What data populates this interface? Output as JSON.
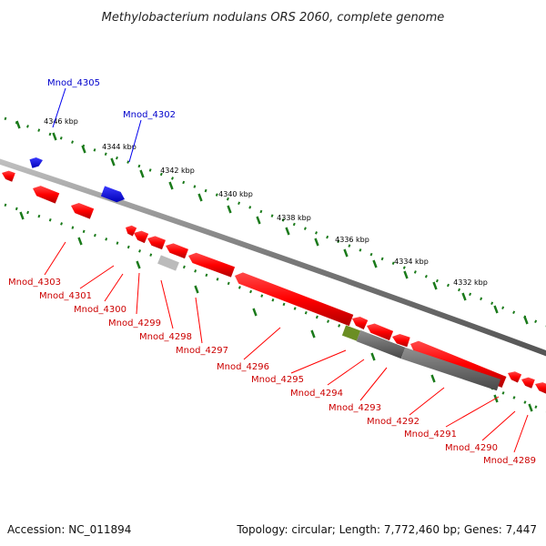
{
  "title": "Methylobacterium nodulans ORS 2060, complete genome",
  "footer": {
    "accession": "Accession: NC_011894",
    "summary": "Topology: circular; Length: 7,772,460 bp; Genes: 7,447"
  },
  "colors": {
    "backbone": "#8a8a8a",
    "scale_ticks": "#1a7a1a",
    "positive_gene": "#0000ee",
    "negative_gene": "#ff0000",
    "pseudo_gene": "#bbbbbb",
    "dark_feature": "#666666",
    "olive_feature": "#6b8e23"
  },
  "scale_ticks": [
    {
      "label": "4346 kbp"
    },
    {
      "label": "4344 kbp"
    },
    {
      "label": "4342 kbp"
    },
    {
      "label": "4340 kbp"
    },
    {
      "label": "4338 kbp"
    },
    {
      "label": "4336 kbp"
    },
    {
      "label": "4334 kbp"
    },
    {
      "label": "4332 kbp"
    }
  ],
  "genes": [
    {
      "id": "Mnod_4305",
      "strand": "+"
    },
    {
      "id": "Mnod_4302",
      "strand": "+"
    },
    {
      "id": "Mnod_4303",
      "strand": "-"
    },
    {
      "id": "Mnod_4301",
      "strand": "-"
    },
    {
      "id": "Mnod_4300",
      "strand": "-"
    },
    {
      "id": "Mnod_4299",
      "strand": "-"
    },
    {
      "id": "Mnod_4298",
      "strand": "-"
    },
    {
      "id": "Mnod_4297",
      "strand": "-"
    },
    {
      "id": "Mnod_4296",
      "strand": "-"
    },
    {
      "id": "Mnod_4295",
      "strand": "-"
    },
    {
      "id": "Mnod_4294",
      "strand": "-"
    },
    {
      "id": "Mnod_4293",
      "strand": "-"
    },
    {
      "id": "Mnod_4292",
      "strand": "-"
    },
    {
      "id": "Mnod_4291",
      "strand": "-"
    },
    {
      "id": "Mnod_4290",
      "strand": "-"
    },
    {
      "id": "Mnod_4289",
      "strand": "-"
    }
  ]
}
